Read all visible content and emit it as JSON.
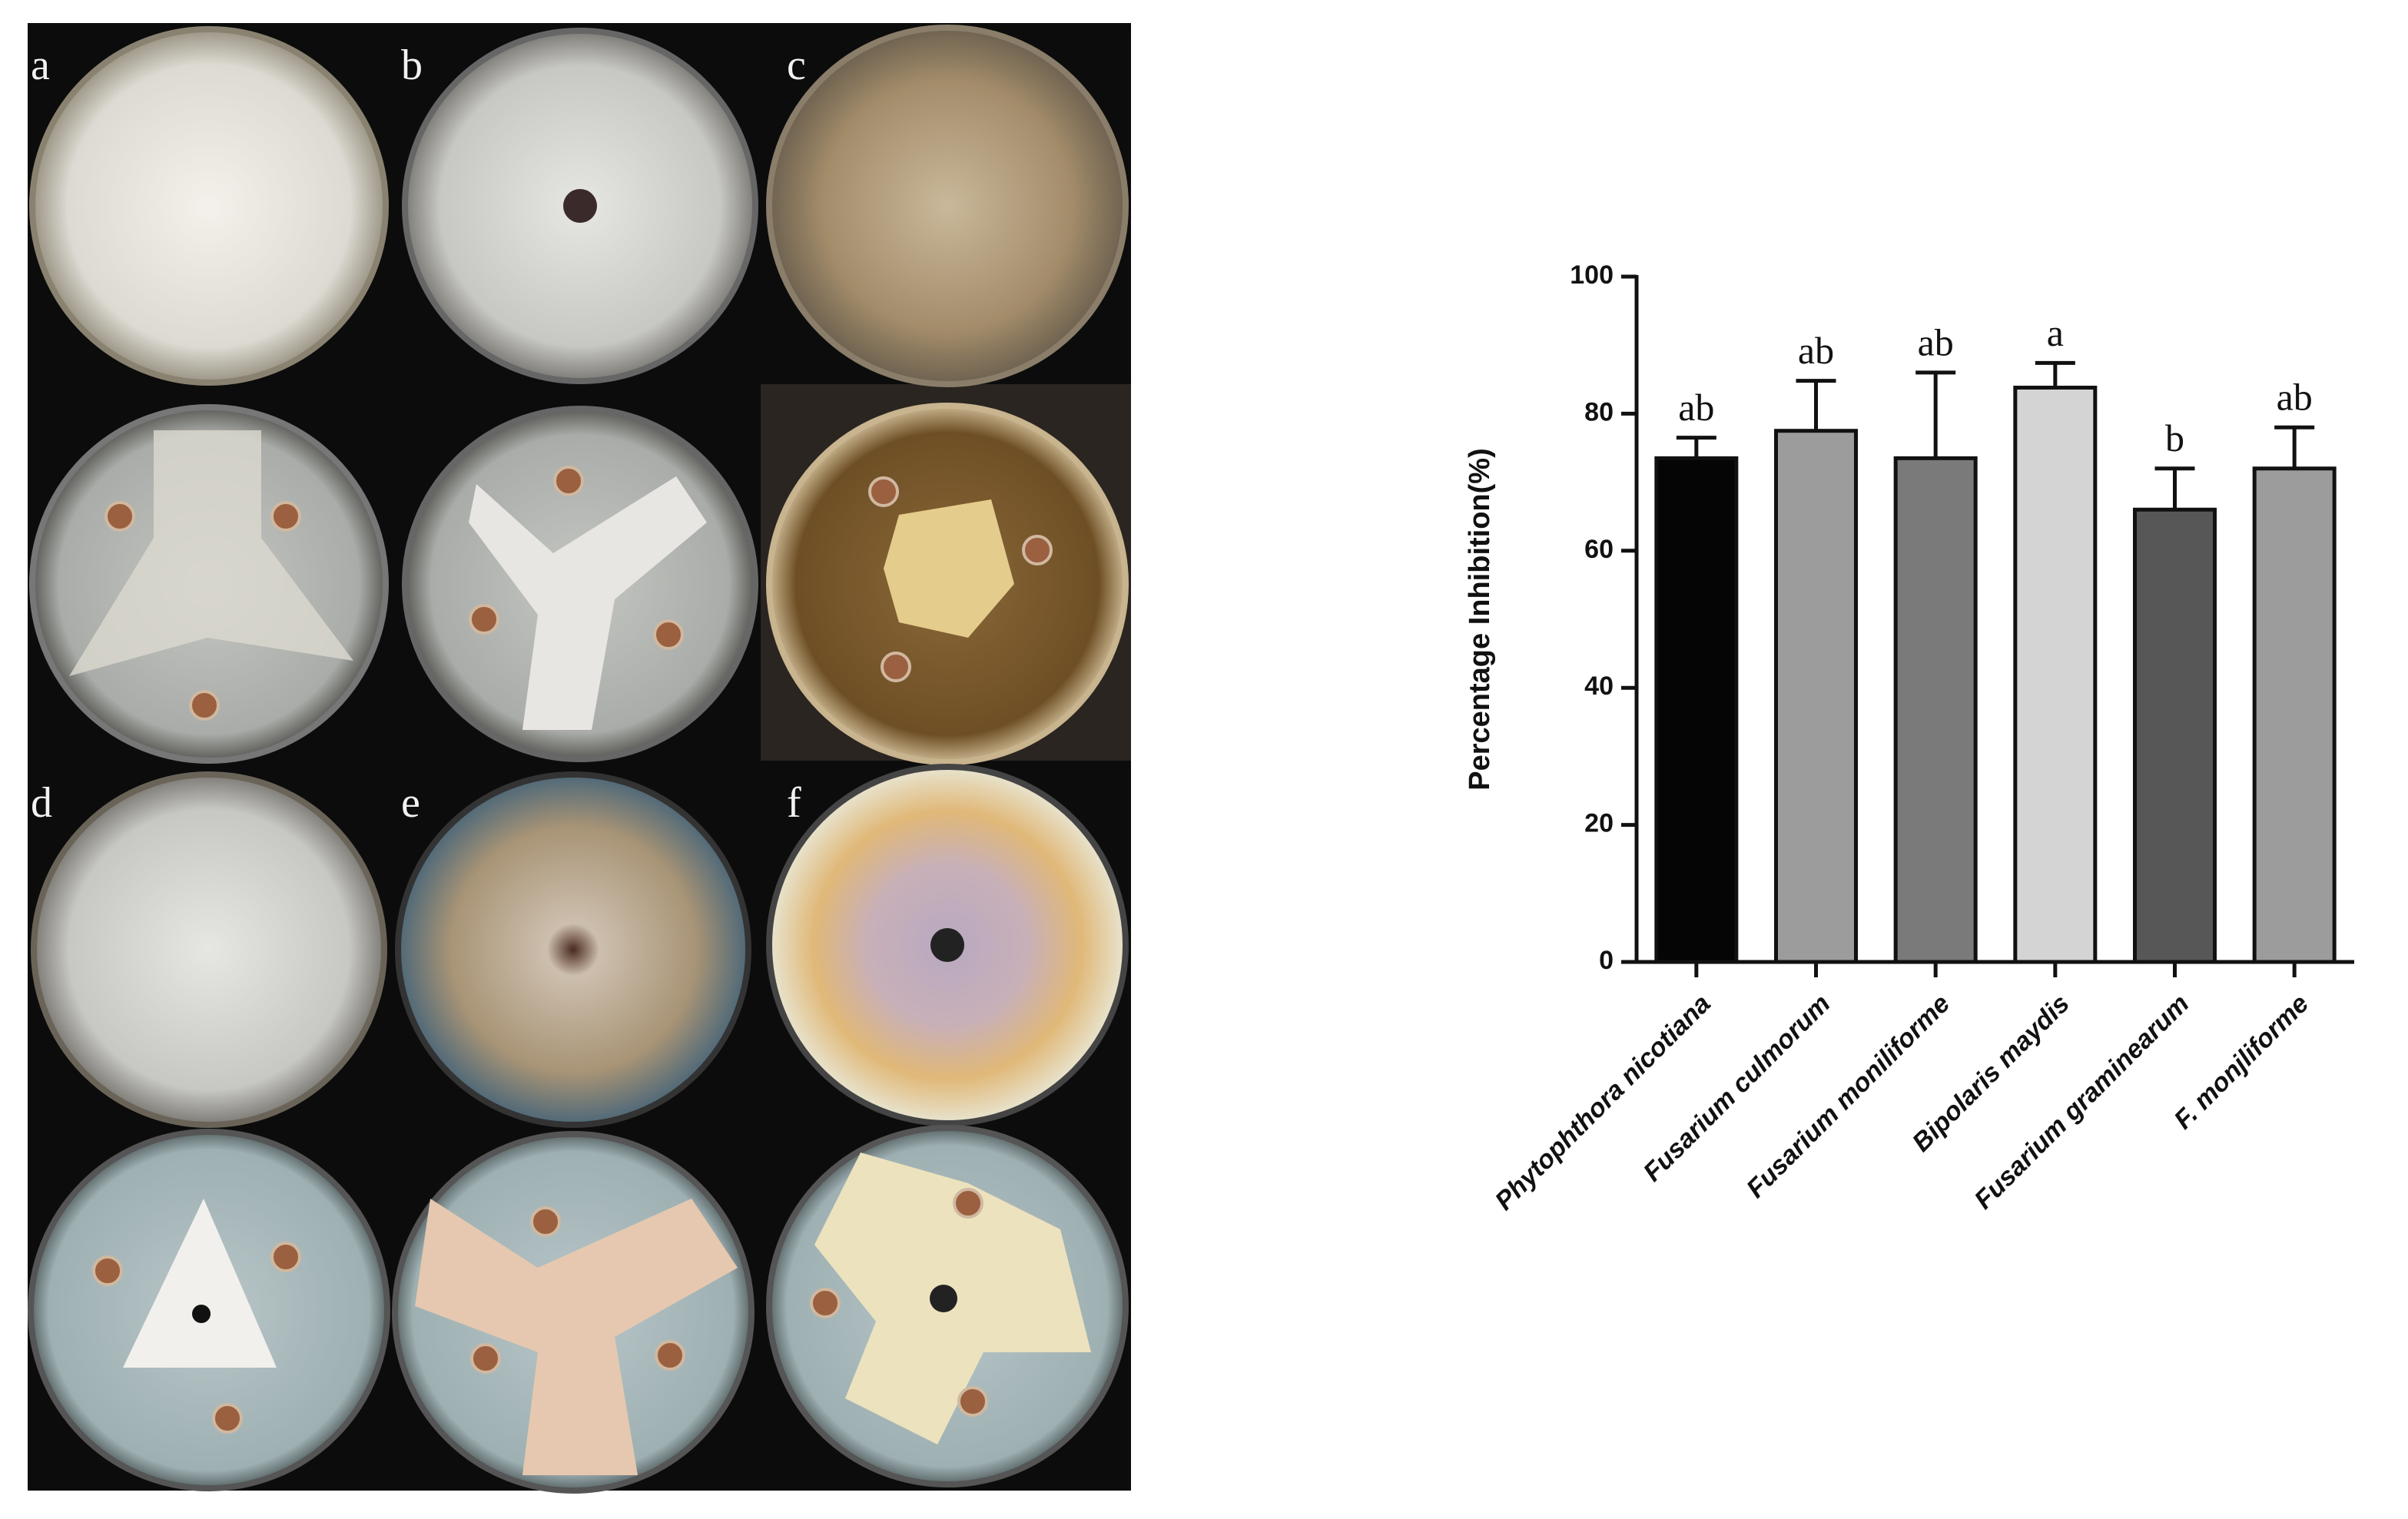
{
  "panels": {
    "labels": [
      "a",
      "b",
      "c",
      "d",
      "e",
      "f"
    ]
  },
  "chart_data": {
    "type": "bar",
    "y_label": "Percentage Inhibition(%)",
    "categories": [
      "Phytophthora nicotiana",
      "Fusarium culmorum",
      "Fusarium moniliforme",
      "Bipolaris maydis",
      "Fusarium graminearum",
      "F. monjliforme"
    ],
    "values": [
      73.5,
      77.5,
      73.5,
      83.8,
      66,
      72
    ],
    "errors": [
      3,
      7.3,
      12.5,
      3.6,
      6,
      6
    ],
    "annotations": [
      "ab",
      "ab",
      "ab",
      "a",
      "b",
      "ab"
    ],
    "colors": [
      "#050505",
      "#9c9c9c",
      "#7a7a7a",
      "#d4d4d4",
      "#575757",
      "#9c9c9c"
    ],
    "ylim": [
      0,
      100
    ],
    "yticks": [
      0,
      20,
      40,
      60,
      80,
      100
    ]
  }
}
